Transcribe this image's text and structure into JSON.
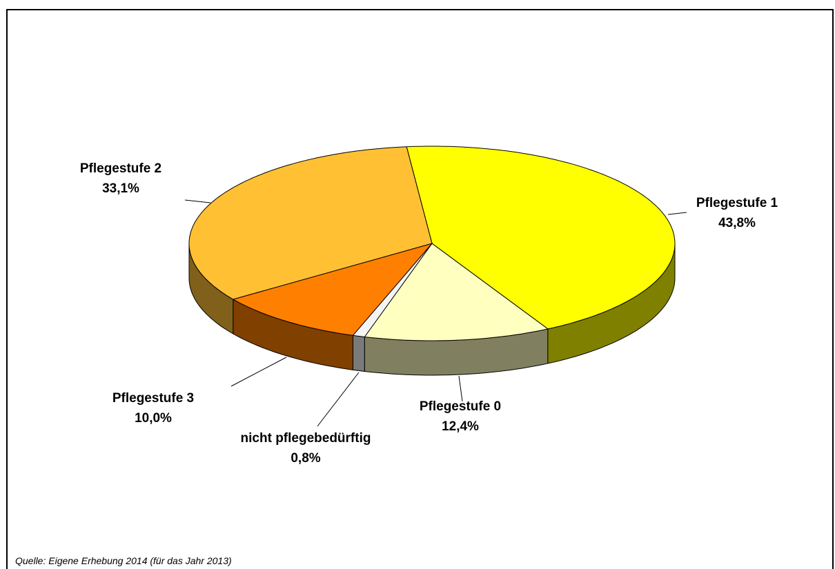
{
  "chart_data": {
    "type": "pie3d",
    "categories": [
      "Pflegestufe 1",
      "Pflegestufe 0",
      "nicht pflegebedürftig",
      "Pflegestufe 3",
      "Pflegestufe 2"
    ],
    "values": [
      43.8,
      12.4,
      0.8,
      10.0,
      33.1
    ],
    "value_labels": [
      "43,8%",
      "12,4%",
      "0,8%",
      "10,0%",
      "33,1%"
    ],
    "colors": [
      "#ffff00",
      "#ffffc0",
      "#f4f4f4",
      "#ff8000",
      "#ffc034"
    ],
    "source": "Quelle: Eigene Erhebung 2014 (für das Jahr 2013)"
  }
}
